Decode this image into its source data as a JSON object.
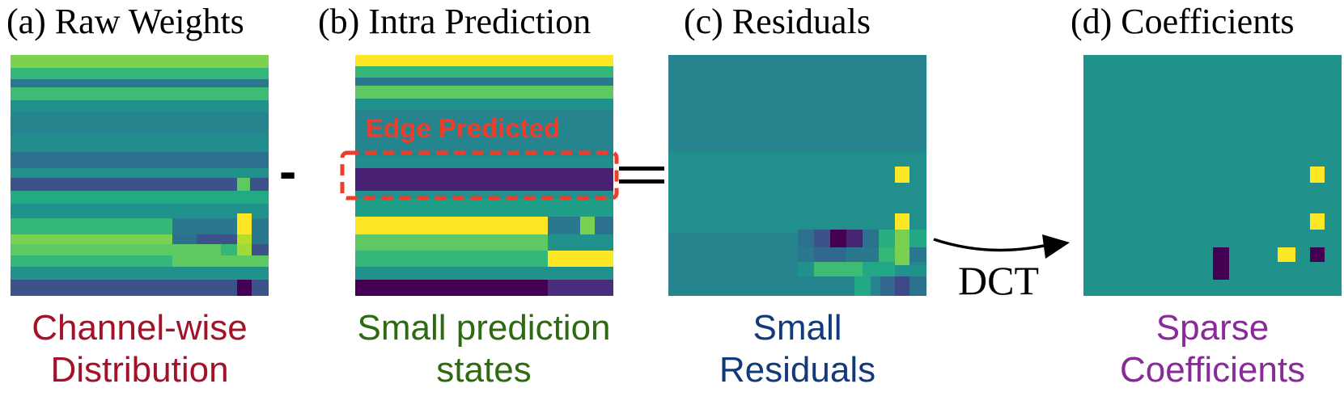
{
  "panels": [
    {
      "title": "(a) Raw Weights",
      "caption_line1": "Channel-wise",
      "caption_line2": "Distribution",
      "caption_color": "#a2132a"
    },
    {
      "title": "(b) Intra Prediction",
      "caption_line1": "Small prediction",
      "caption_line2": "states",
      "caption_color": "#2d6a12"
    },
    {
      "title": "(c) Residuals",
      "caption_line1": "Small",
      "caption_line2": "Residuals",
      "caption_color": "#123a7a"
    },
    {
      "title": "(d) Coefficients",
      "caption_line1": "Sparse",
      "caption_line2": "Coefficients",
      "caption_color": "#8a2a9a"
    }
  ],
  "operators": {
    "minus": "-",
    "equals": "="
  },
  "annotation": {
    "edge_label": "Edge Predicted",
    "color": "#f03c2a"
  },
  "transform": {
    "label": "DCT"
  },
  "colormap": [
    "#440154",
    "#3b528b",
    "#21918c",
    "#5ec962",
    "#fde725"
  ]
}
